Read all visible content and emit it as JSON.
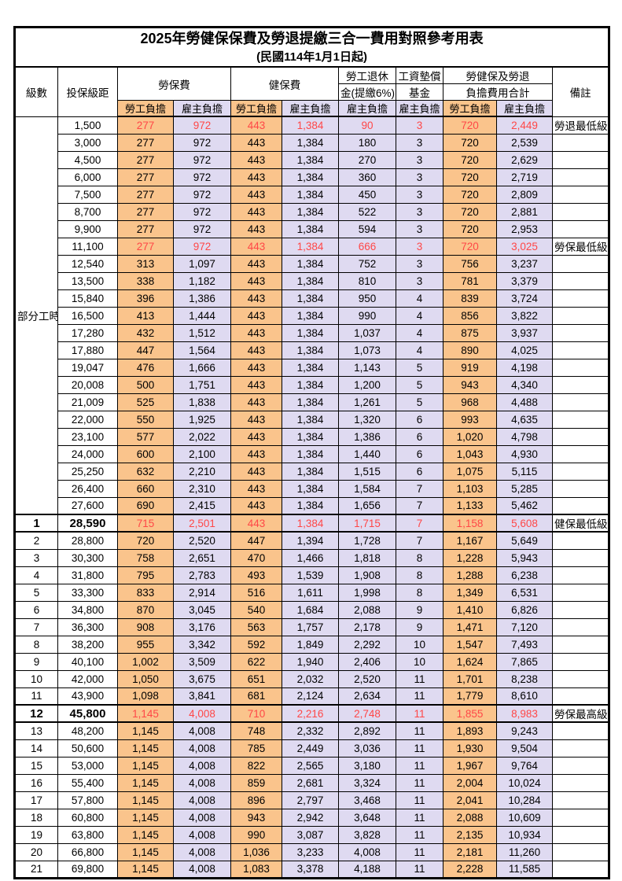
{
  "title": "2025年勞健保保費及勞退提繳三合一費用對照參考用表",
  "subtitle": "(民國114年1月1日起)",
  "header": {
    "level": "級數",
    "bracket": "投保級距",
    "labor_insurance": "勞保費",
    "health_insurance": "健保費",
    "pension_line1": "勞工退休",
    "pension_line2": "金(提繳6%)",
    "wage_fund_line1": "工資墊償",
    "wage_fund_line2": "基金",
    "total_line1": "勞健保及勞退",
    "total_line2": "負擔費用合計",
    "remark": "備註",
    "employee_burden": "勞工負擔",
    "employer_burden": "雇主負擔"
  },
  "part_time_label": "部分工時",
  "colors": {
    "employee_bg": "#FAC48C",
    "employer_bg": "#DFDAF1",
    "highlight_text": "#FF4747",
    "remark_text": "#FF4040",
    "border": "#000000"
  },
  "rows": [
    {
      "bracket": "1,500",
      "cells": [
        "277",
        "972",
        "443",
        "1,384",
        "90",
        "3",
        "720",
        "2,449"
      ],
      "remark": "勞退最低級距",
      "red": true
    },
    {
      "bracket": "3,000",
      "cells": [
        "277",
        "972",
        "443",
        "1,384",
        "180",
        "3",
        "720",
        "2,539"
      ],
      "remark": ""
    },
    {
      "bracket": "4,500",
      "cells": [
        "277",
        "972",
        "443",
        "1,384",
        "270",
        "3",
        "720",
        "2,629"
      ],
      "remark": ""
    },
    {
      "bracket": "6,000",
      "cells": [
        "277",
        "972",
        "443",
        "1,384",
        "360",
        "3",
        "720",
        "2,719"
      ],
      "remark": ""
    },
    {
      "bracket": "7,500",
      "cells": [
        "277",
        "972",
        "443",
        "1,384",
        "450",
        "3",
        "720",
        "2,809"
      ],
      "remark": ""
    },
    {
      "bracket": "8,700",
      "cells": [
        "277",
        "972",
        "443",
        "1,384",
        "522",
        "3",
        "720",
        "2,881"
      ],
      "remark": ""
    },
    {
      "bracket": "9,900",
      "cells": [
        "277",
        "972",
        "443",
        "1,384",
        "594",
        "3",
        "720",
        "2,953"
      ],
      "remark": ""
    },
    {
      "bracket": "11,100",
      "cells": [
        "277",
        "972",
        "443",
        "1,384",
        "666",
        "3",
        "720",
        "3,025"
      ],
      "remark": "勞保最低級距",
      "red": true
    },
    {
      "bracket": "12,540",
      "cells": [
        "313",
        "1,097",
        "443",
        "1,384",
        "752",
        "3",
        "756",
        "3,237"
      ],
      "remark": ""
    },
    {
      "bracket": "13,500",
      "cells": [
        "338",
        "1,182",
        "443",
        "1,384",
        "810",
        "3",
        "781",
        "3,379"
      ],
      "remark": ""
    },
    {
      "bracket": "15,840",
      "cells": [
        "396",
        "1,386",
        "443",
        "1,384",
        "950",
        "4",
        "839",
        "3,724"
      ],
      "remark": ""
    },
    {
      "bracket": "16,500",
      "cells": [
        "413",
        "1,444",
        "443",
        "1,384",
        "990",
        "4",
        "856",
        "3,822"
      ],
      "remark": ""
    },
    {
      "bracket": "17,280",
      "cells": [
        "432",
        "1,512",
        "443",
        "1,384",
        "1,037",
        "4",
        "875",
        "3,937"
      ],
      "remark": ""
    },
    {
      "bracket": "17,880",
      "cells": [
        "447",
        "1,564",
        "443",
        "1,384",
        "1,073",
        "4",
        "890",
        "4,025"
      ],
      "remark": ""
    },
    {
      "bracket": "19,047",
      "cells": [
        "476",
        "1,666",
        "443",
        "1,384",
        "1,143",
        "5",
        "919",
        "4,198"
      ],
      "remark": ""
    },
    {
      "bracket": "20,008",
      "cells": [
        "500",
        "1,751",
        "443",
        "1,384",
        "1,200",
        "5",
        "943",
        "4,340"
      ],
      "remark": ""
    },
    {
      "bracket": "21,009",
      "cells": [
        "525",
        "1,838",
        "443",
        "1,384",
        "1,261",
        "5",
        "968",
        "4,488"
      ],
      "remark": ""
    },
    {
      "bracket": "22,000",
      "cells": [
        "550",
        "1,925",
        "443",
        "1,384",
        "1,320",
        "6",
        "993",
        "4,635"
      ],
      "remark": ""
    },
    {
      "bracket": "23,100",
      "cells": [
        "577",
        "2,022",
        "443",
        "1,384",
        "1,386",
        "6",
        "1,020",
        "4,798"
      ],
      "remark": ""
    },
    {
      "bracket": "24,000",
      "cells": [
        "600",
        "2,100",
        "443",
        "1,384",
        "1,440",
        "6",
        "1,043",
        "4,930"
      ],
      "remark": ""
    },
    {
      "bracket": "25,250",
      "cells": [
        "632",
        "2,210",
        "443",
        "1,384",
        "1,515",
        "6",
        "1,075",
        "5,115"
      ],
      "remark": ""
    },
    {
      "bracket": "26,400",
      "cells": [
        "660",
        "2,310",
        "443",
        "1,384",
        "1,584",
        "7",
        "1,103",
        "5,285"
      ],
      "remark": ""
    },
    {
      "bracket": "27,600",
      "cells": [
        "690",
        "2,415",
        "443",
        "1,384",
        "1,656",
        "7",
        "1,133",
        "5,462"
      ],
      "remark": ""
    },
    {
      "level": "1",
      "bracket": "28,590",
      "cells": [
        "715",
        "2,501",
        "443",
        "1,384",
        "1,715",
        "7",
        "1,158",
        "5,608"
      ],
      "remark": "健保最低級距",
      "red": true,
      "em": true,
      "hl": true
    },
    {
      "level": "2",
      "bracket": "28,800",
      "cells": [
        "720",
        "2,520",
        "447",
        "1,394",
        "1,728",
        "7",
        "1,167",
        "5,649"
      ],
      "remark": ""
    },
    {
      "level": "3",
      "bracket": "30,300",
      "cells": [
        "758",
        "2,651",
        "470",
        "1,466",
        "1,818",
        "8",
        "1,228",
        "5,943"
      ],
      "remark": ""
    },
    {
      "level": "4",
      "bracket": "31,800",
      "cells": [
        "795",
        "2,783",
        "493",
        "1,539",
        "1,908",
        "8",
        "1,288",
        "6,238"
      ],
      "remark": ""
    },
    {
      "level": "5",
      "bracket": "33,300",
      "cells": [
        "833",
        "2,914",
        "516",
        "1,611",
        "1,998",
        "8",
        "1,349",
        "6,531"
      ],
      "remark": ""
    },
    {
      "level": "6",
      "bracket": "34,800",
      "cells": [
        "870",
        "3,045",
        "540",
        "1,684",
        "2,088",
        "9",
        "1,410",
        "6,826"
      ],
      "remark": ""
    },
    {
      "level": "7",
      "bracket": "36,300",
      "cells": [
        "908",
        "3,176",
        "563",
        "1,757",
        "2,178",
        "9",
        "1,471",
        "7,120"
      ],
      "remark": ""
    },
    {
      "level": "8",
      "bracket": "38,200",
      "cells": [
        "955",
        "3,342",
        "592",
        "1,849",
        "2,292",
        "10",
        "1,547",
        "7,493"
      ],
      "remark": ""
    },
    {
      "level": "9",
      "bracket": "40,100",
      "cells": [
        "1,002",
        "3,509",
        "622",
        "1,940",
        "2,406",
        "10",
        "1,624",
        "7,865"
      ],
      "remark": ""
    },
    {
      "level": "10",
      "bracket": "42,000",
      "cells": [
        "1,050",
        "3,675",
        "651",
        "2,032",
        "2,520",
        "11",
        "1,701",
        "8,238"
      ],
      "remark": ""
    },
    {
      "level": "11",
      "bracket": "43,900",
      "cells": [
        "1,098",
        "3,841",
        "681",
        "2,124",
        "2,634",
        "11",
        "1,779",
        "8,610"
      ],
      "remark": ""
    },
    {
      "level": "12",
      "bracket": "45,800",
      "cells": [
        "1,145",
        "4,008",
        "710",
        "2,216",
        "2,748",
        "11",
        "1,855",
        "8,983"
      ],
      "remark": "勞保最高級距",
      "red": true,
      "em": true,
      "hl": true
    },
    {
      "level": "13",
      "bracket": "48,200",
      "cells": [
        "1,145",
        "4,008",
        "748",
        "2,332",
        "2,892",
        "11",
        "1,893",
        "9,243"
      ],
      "remark": ""
    },
    {
      "level": "14",
      "bracket": "50,600",
      "cells": [
        "1,145",
        "4,008",
        "785",
        "2,449",
        "3,036",
        "11",
        "1,930",
        "9,504"
      ],
      "remark": ""
    },
    {
      "level": "15",
      "bracket": "53,000",
      "cells": [
        "1,145",
        "4,008",
        "822",
        "2,565",
        "3,180",
        "11",
        "1,967",
        "9,764"
      ],
      "remark": ""
    },
    {
      "level": "16",
      "bracket": "55,400",
      "cells": [
        "1,145",
        "4,008",
        "859",
        "2,681",
        "3,324",
        "11",
        "2,004",
        "10,024"
      ],
      "remark": ""
    },
    {
      "level": "17",
      "bracket": "57,800",
      "cells": [
        "1,145",
        "4,008",
        "896",
        "2,797",
        "3,468",
        "11",
        "2,041",
        "10,284"
      ],
      "remark": ""
    },
    {
      "level": "18",
      "bracket": "60,800",
      "cells": [
        "1,145",
        "4,008",
        "943",
        "2,942",
        "3,648",
        "11",
        "2,088",
        "10,609"
      ],
      "remark": ""
    },
    {
      "level": "19",
      "bracket": "63,800",
      "cells": [
        "1,145",
        "4,008",
        "990",
        "3,087",
        "3,828",
        "11",
        "2,135",
        "10,934"
      ],
      "remark": ""
    },
    {
      "level": "20",
      "bracket": "66,800",
      "cells": [
        "1,145",
        "4,008",
        "1,036",
        "3,233",
        "4,008",
        "11",
        "2,181",
        "11,260"
      ],
      "remark": ""
    },
    {
      "level": "21",
      "bracket": "69,800",
      "cells": [
        "1,145",
        "4,008",
        "1,083",
        "3,378",
        "4,188",
        "11",
        "2,228",
        "11,585"
      ],
      "remark": ""
    }
  ]
}
